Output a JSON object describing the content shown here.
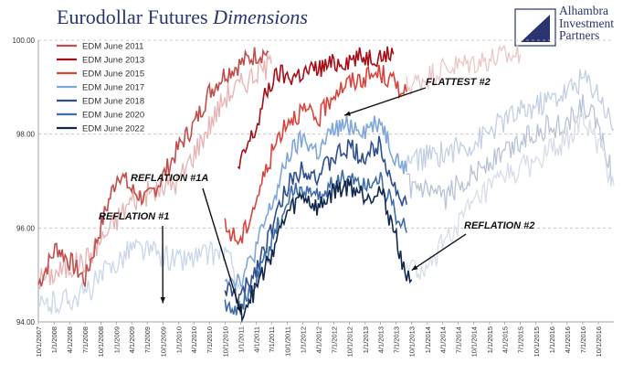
{
  "title": {
    "main": "Eurodollar Futures",
    "italic": "Dimensions"
  },
  "logo": {
    "lines": [
      "Alhambra",
      "Investment",
      "Partners"
    ]
  },
  "chart_data": {
    "type": "line",
    "title": "Eurodollar Futures Dimensions",
    "xlabel": "",
    "ylabel": "",
    "ylim": [
      94.0,
      100.0
    ],
    "y_ticks": [
      "94.00",
      "96.00",
      "98.00",
      "100.00"
    ],
    "x_range": [
      "2007-10-01",
      "2016-12-31"
    ],
    "x_ticks": [
      "10/1/2007",
      "1/1/2008",
      "4/1/2008",
      "7/1/2008",
      "10/1/2008",
      "1/1/2009",
      "4/1/2009",
      "7/1/2009",
      "10/1/2009",
      "1/1/2010",
      "4/1/2010",
      "7/1/2010",
      "10/1/2010",
      "1/1/2011",
      "4/1/2011",
      "7/1/2011",
      "10/1/2011",
      "1/1/2012",
      "4/1/2012",
      "7/1/2012",
      "10/1/2012",
      "1/1/2013",
      "4/1/2013",
      "7/1/2013",
      "10/1/2013",
      "1/1/2014",
      "4/1/2014",
      "7/1/2014",
      "10/1/2014",
      "1/1/2015",
      "4/1/2015",
      "7/1/2015",
      "10/1/2015",
      "1/1/2016",
      "4/1/2016",
      "7/1/2016",
      "10/1/2016"
    ],
    "grid": {
      "horizontal_dashed": true
    },
    "legend_position": "top-left",
    "series": [
      {
        "name": "EDM June 2011",
        "color": "#c0504d",
        "points": [
          [
            "2007-10-01",
            94.8
          ],
          [
            "2008-01-15",
            95.6
          ],
          [
            "2008-04-01",
            95.3
          ],
          [
            "2008-07-01",
            94.9
          ],
          [
            "2008-11-01",
            96.4
          ],
          [
            "2009-01-15",
            97.2
          ],
          [
            "2009-04-01",
            96.8
          ],
          [
            "2009-07-01",
            96.6
          ],
          [
            "2009-10-01",
            97.1
          ],
          [
            "2010-01-15",
            97.8
          ],
          [
            "2010-04-01",
            98.2
          ],
          [
            "2010-07-01",
            98.9
          ],
          [
            "2010-10-01",
            99.3
          ],
          [
            "2011-01-01",
            99.5
          ],
          [
            "2011-04-01",
            99.7
          ],
          [
            "2011-06-15",
            99.75
          ]
        ]
      },
      {
        "name": "EDM June 2013",
        "color": "#a50f15",
        "points": [
          [
            "2010-12-15",
            97.2
          ],
          [
            "2011-02-15",
            97.8
          ],
          [
            "2011-04-01",
            98.1
          ],
          [
            "2011-05-15",
            98.7
          ],
          [
            "2011-06-15",
            99.0
          ],
          [
            "2011-08-15",
            99.3
          ],
          [
            "2011-10-01",
            99.2
          ],
          [
            "2012-01-01",
            99.3
          ],
          [
            "2012-04-01",
            99.4
          ],
          [
            "2012-07-01",
            99.5
          ],
          [
            "2012-10-01",
            99.6
          ],
          [
            "2013-01-01",
            99.65
          ],
          [
            "2013-06-15",
            99.7
          ]
        ]
      },
      {
        "name": "EDM June 2015",
        "color": "#d9453c",
        "points": [
          [
            "2010-10-01",
            96.0
          ],
          [
            "2011-01-01",
            95.7
          ],
          [
            "2011-04-01",
            96.6
          ],
          [
            "2011-06-15",
            97.4
          ],
          [
            "2011-08-15",
            98.0
          ],
          [
            "2011-10-01",
            98.3
          ],
          [
            "2012-01-01",
            98.5
          ],
          [
            "2012-04-01",
            98.3
          ],
          [
            "2012-07-01",
            98.9
          ],
          [
            "2012-10-01",
            99.1
          ],
          [
            "2013-01-01",
            99.2
          ],
          [
            "2013-04-01",
            99.3
          ],
          [
            "2013-06-15",
            99.1
          ],
          [
            "2013-09-01",
            98.9
          ]
        ]
      },
      {
        "name": "EDM June 2017",
        "color": "#7fa7d9",
        "points": [
          [
            "2010-10-01",
            95.0
          ],
          [
            "2011-01-01",
            94.9
          ],
          [
            "2011-03-15",
            95.4
          ],
          [
            "2011-06-01",
            96.2
          ],
          [
            "2011-08-15",
            96.9
          ],
          [
            "2011-10-01",
            97.5
          ],
          [
            "2012-01-01",
            97.9
          ],
          [
            "2012-04-01",
            97.6
          ],
          [
            "2012-07-01",
            98.1
          ],
          [
            "2012-10-01",
            98.2
          ],
          [
            "2013-01-01",
            98.1
          ],
          [
            "2013-04-01",
            98.3
          ],
          [
            "2013-06-15",
            97.6
          ],
          [
            "2013-09-01",
            97.2
          ]
        ]
      },
      {
        "name": "EDM June 2018",
        "color": "#2f4f8f",
        "points": [
          [
            "2010-10-01",
            94.7
          ],
          [
            "2011-01-01",
            94.5
          ],
          [
            "2011-03-15",
            95.0
          ],
          [
            "2011-06-01",
            95.7
          ],
          [
            "2011-08-15",
            96.4
          ],
          [
            "2011-10-01",
            96.9
          ],
          [
            "2012-01-01",
            97.3
          ],
          [
            "2012-04-01",
            97.1
          ],
          [
            "2012-07-01",
            97.5
          ],
          [
            "2012-10-01",
            97.7
          ],
          [
            "2013-01-01",
            97.5
          ],
          [
            "2013-04-01",
            97.8
          ],
          [
            "2013-06-15",
            96.9
          ],
          [
            "2013-09-01",
            96.5
          ]
        ]
      },
      {
        "name": "EDM June 2020",
        "color": "#3f6ea8",
        "points": [
          [
            "2010-10-01",
            94.4
          ],
          [
            "2011-01-01",
            94.3
          ],
          [
            "2011-03-15",
            94.7
          ],
          [
            "2011-06-01",
            95.4
          ],
          [
            "2011-08-15",
            96.1
          ],
          [
            "2011-10-01",
            96.6
          ],
          [
            "2012-01-01",
            96.9
          ],
          [
            "2012-04-01",
            96.6
          ],
          [
            "2012-07-01",
            97.0
          ],
          [
            "2012-10-01",
            97.1
          ],
          [
            "2013-01-01",
            96.9
          ],
          [
            "2013-04-01",
            97.1
          ],
          [
            "2013-06-15",
            96.4
          ],
          [
            "2013-09-01",
            95.9
          ]
        ]
      },
      {
        "name": "EDM June 2022",
        "color": "#12294f",
        "points": [
          [
            "2011-01-01",
            94.2
          ],
          [
            "2011-03-15",
            94.6
          ],
          [
            "2011-06-01",
            95.2
          ],
          [
            "2011-08-15",
            95.9
          ],
          [
            "2011-10-01",
            96.3
          ],
          [
            "2012-01-01",
            96.7
          ],
          [
            "2012-04-01",
            96.4
          ],
          [
            "2012-07-01",
            96.8
          ],
          [
            "2012-10-01",
            96.9
          ],
          [
            "2013-01-01",
            96.7
          ],
          [
            "2013-04-01",
            96.8
          ],
          [
            "2013-06-15",
            96.0
          ],
          [
            "2013-09-01",
            95.0
          ],
          [
            "2013-10-01",
            94.9
          ]
        ]
      }
    ],
    "faded_series": [
      {
        "color": "#e8b3b3",
        "points": [
          [
            "2007-10-01",
            94.9
          ],
          [
            "2008-07-01",
            95.3
          ],
          [
            "2009-04-01",
            96.6
          ],
          [
            "2010-01-01",
            97.0
          ],
          [
            "2010-10-01",
            98.8
          ],
          [
            "2011-04-01",
            99.3
          ],
          [
            "2011-07-01",
            99.5
          ]
        ]
      },
      {
        "color": "#ecc7c7",
        "points": [
          [
            "2013-09-01",
            99.0
          ],
          [
            "2014-04-01",
            99.4
          ],
          [
            "2015-01-01",
            99.6
          ],
          [
            "2015-07-01",
            99.7
          ]
        ]
      },
      {
        "color": "#c8d7ea",
        "points": [
          [
            "2007-10-01",
            94.3
          ],
          [
            "2008-07-01",
            94.6
          ],
          [
            "2009-04-01",
            95.6
          ],
          [
            "2010-01-01",
            95.3
          ],
          [
            "2010-10-01",
            95.5
          ],
          [
            "2011-01-01",
            94.7
          ]
        ]
      },
      {
        "color": "#c3cfe3",
        "points": [
          [
            "2013-09-01",
            97.4
          ],
          [
            "2014-04-01",
            97.6
          ],
          [
            "2014-10-01",
            97.8
          ],
          [
            "2015-04-01",
            98.3
          ],
          [
            "2015-10-01",
            98.6
          ],
          [
            "2016-04-01",
            98.9
          ],
          [
            "2016-07-01",
            99.2
          ],
          [
            "2016-10-01",
            98.9
          ],
          [
            "2016-12-31",
            98.1
          ]
        ]
      },
      {
        "color": "#b9c3d6",
        "points": [
          [
            "2013-09-01",
            96.9
          ],
          [
            "2014-04-01",
            96.6
          ],
          [
            "2014-10-01",
            97.2
          ],
          [
            "2015-04-01",
            97.6
          ],
          [
            "2015-10-01",
            98.1
          ],
          [
            "2016-04-01",
            98.2
          ],
          [
            "2016-07-01",
            98.6
          ],
          [
            "2016-10-01",
            98.2
          ],
          [
            "2016-12-31",
            97.0
          ]
        ]
      },
      {
        "color": "#d7deea",
        "points": [
          [
            "2013-09-01",
            95.2
          ],
          [
            "2014-01-01",
            95.0
          ],
          [
            "2014-04-01",
            95.7
          ],
          [
            "2014-10-01",
            96.5
          ],
          [
            "2015-04-01",
            97.1
          ],
          [
            "2015-10-01",
            97.4
          ],
          [
            "2016-04-01",
            97.9
          ],
          [
            "2016-07-01",
            98.3
          ],
          [
            "2016-10-01",
            97.8
          ],
          [
            "2016-12-31",
            96.9
          ]
        ]
      }
    ],
    "annotations": [
      {
        "text": "REFLATION #1",
        "arrow_to": [
          "2009-10-01",
          94.4
        ]
      },
      {
        "text": "REFLATION #1A",
        "arrow_to": [
          "2011-01-01",
          94.2
        ]
      },
      {
        "text": "FLATTEST #2",
        "arrow_to": [
          "2012-09-01",
          98.4
        ]
      },
      {
        "text": "REFLATION #2",
        "arrow_to": [
          "2013-10-01",
          95.1
        ]
      }
    ]
  }
}
